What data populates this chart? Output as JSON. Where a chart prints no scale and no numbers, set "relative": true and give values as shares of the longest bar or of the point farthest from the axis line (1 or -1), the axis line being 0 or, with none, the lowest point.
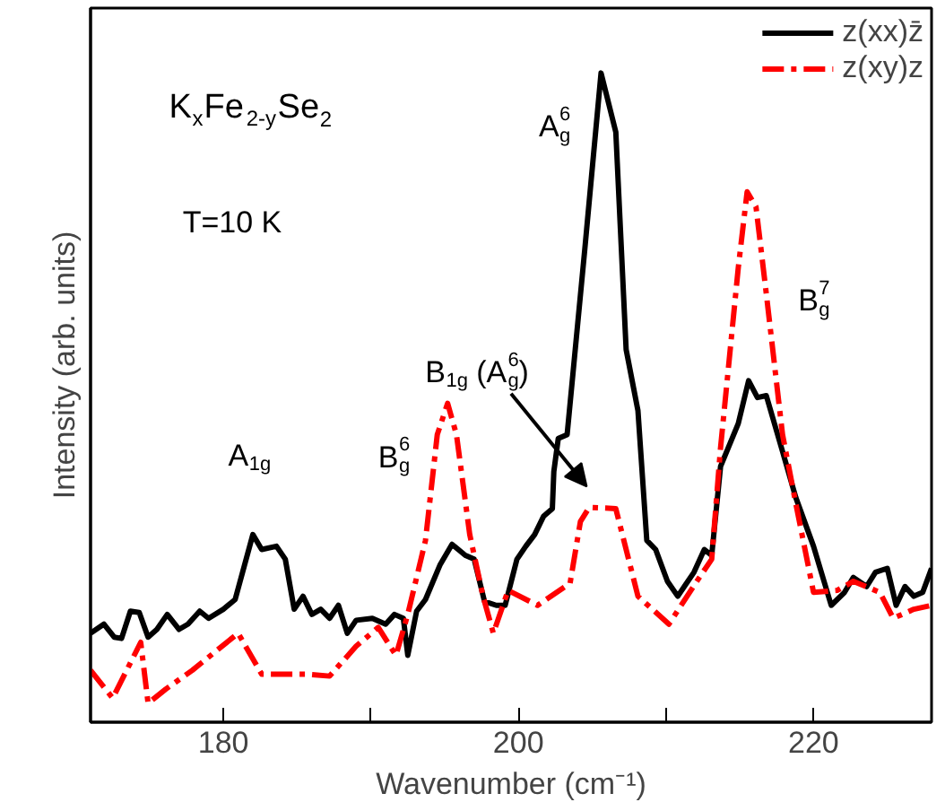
{
  "chart_data": {
    "type": "line",
    "relative": true,
    "xlabel": "Wavenumber (cm⁻¹)",
    "ylabel": "Intensity (arb. units)",
    "xlim": [
      171,
      228
    ],
    "xticks": [
      180,
      {
        "value": 190,
        "label": null
      },
      200,
      {
        "value": 210,
        "label": null
      },
      220
    ],
    "legend": "top right",
    "grid": false,
    "annotations": [
      "K$_{x}$Fe$_{2-y}$Se$_{2}$",
      "T=10 K",
      {
        "text": "A$_{1g}$",
        "x": 182.6,
        "y": 0.289
      },
      {
        "text": "B$_{g}$$^{6}$",
        "x": 195.2,
        "y": 0.491
      },
      "B$_{1g}$ (A$_{g}$$^{6}$)",
      {
        "text": "A$_{g}$$^{6}$",
        "x": 205.6,
        "y": 1.0
      },
      "B$_{g}$$^{7}$"
    ],
    "series": [
      {
        "name": "z(xx)z̄",
        "color": "#000000",
        "line_style": "solid",
        "x": [
          171.0,
          171.9,
          172.6,
          173.1,
          173.7,
          174.3,
          174.9,
          175.5,
          176.2,
          177.0,
          177.6,
          178.4,
          179.0,
          180.0,
          180.8,
          182.0,
          182.6,
          183.6,
          184.2,
          184.8,
          185.4,
          186.0,
          186.6,
          187.2,
          187.8,
          188.4,
          189.0,
          190.1,
          191.0,
          191.6,
          192.2,
          192.5,
          193.1,
          193.7,
          194.7,
          195.5,
          196.4,
          197.0,
          197.7,
          198.5,
          199.1,
          199.9,
          200.5,
          201.1,
          201.7,
          202.3,
          202.4,
          202.7,
          203.3,
          204.5,
          205.6,
          206.6,
          207.3,
          208.1,
          208.7,
          209.3,
          210.1,
          210.8,
          211.9,
          212.6,
          213.1,
          213.7,
          214.9,
          215.6,
          216.2,
          216.8,
          217.9,
          218.8,
          220.0,
          221.2,
          222.1,
          222.7,
          223.6,
          224.2,
          225.0,
          225.6,
          226.2,
          226.8,
          227.4,
          228.0
        ],
        "values": [
          0.137,
          0.151,
          0.131,
          0.129,
          0.171,
          0.169,
          0.131,
          0.143,
          0.166,
          0.143,
          0.151,
          0.171,
          0.16,
          0.174,
          0.189,
          0.289,
          0.266,
          0.271,
          0.251,
          0.174,
          0.194,
          0.166,
          0.174,
          0.16,
          0.18,
          0.137,
          0.157,
          0.16,
          0.151,
          0.166,
          0.16,
          0.103,
          0.171,
          0.189,
          0.243,
          0.274,
          0.257,
          0.251,
          0.186,
          0.18,
          0.18,
          0.251,
          0.271,
          0.289,
          0.317,
          0.329,
          0.386,
          0.437,
          0.443,
          0.729,
          1.0,
          0.909,
          0.574,
          0.48,
          0.28,
          0.266,
          0.217,
          0.194,
          0.231,
          0.266,
          0.257,
          0.394,
          0.46,
          0.526,
          0.5,
          0.503,
          0.417,
          0.346,
          0.271,
          0.18,
          0.2,
          0.223,
          0.209,
          0.231,
          0.237,
          0.18,
          0.209,
          0.194,
          0.2,
          0.237
        ]
      },
      {
        "name": "z(xy)z",
        "color": "#ff0000",
        "line_style": "dashdot",
        "x": [
          171.0,
          172.5,
          174.4,
          174.9,
          176.1,
          177.9,
          181.0,
          182.6,
          185.6,
          187.2,
          189.0,
          190.5,
          191.7,
          192.5,
          193.7,
          194.5,
          195.2,
          195.8,
          196.7,
          197.6,
          198.3,
          199.3,
          201.3,
          203.5,
          204.2,
          204.8,
          206.6,
          208.1,
          210.2,
          212.0,
          213.1,
          213.7,
          214.9,
          215.5,
          216.1,
          216.8,
          217.9,
          218.8,
          220.0,
          221.6,
          222.7,
          224.5,
          225.4,
          226.8,
          228.0
        ],
        "values": [
          0.08,
          0.037,
          0.123,
          0.029,
          0.051,
          0.08,
          0.137,
          0.074,
          0.074,
          0.071,
          0.117,
          0.146,
          0.103,
          0.166,
          0.28,
          0.443,
          0.491,
          0.443,
          0.289,
          0.194,
          0.137,
          0.203,
          0.18,
          0.214,
          0.309,
          0.331,
          0.329,
          0.194,
          0.151,
          0.214,
          0.251,
          0.423,
          0.7,
          0.817,
          0.794,
          0.66,
          0.443,
          0.337,
          0.2,
          0.203,
          0.217,
          0.2,
          0.16,
          0.174,
          0.18
        ]
      }
    ]
  }
}
